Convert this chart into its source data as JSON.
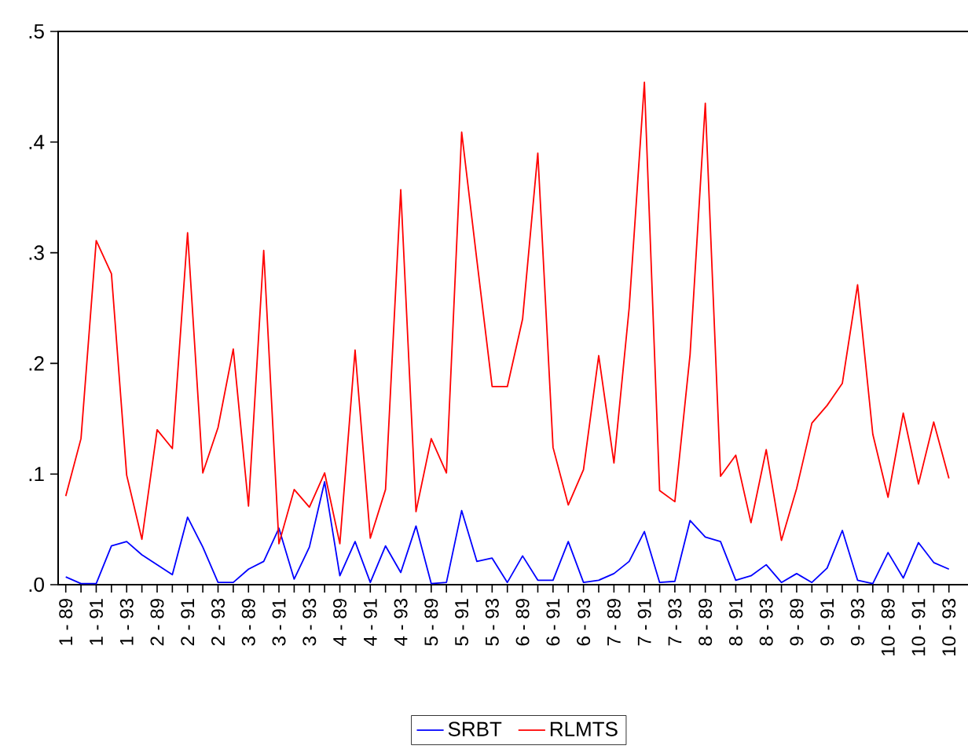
{
  "chart_data": {
    "type": "line",
    "categories": [
      "1 - 89",
      null,
      "1 - 91",
      null,
      "1 - 93",
      null,
      "2 - 89",
      null,
      "2 - 91",
      null,
      "2 - 93",
      null,
      "3 - 89",
      null,
      "3 - 91",
      null,
      "3 - 93",
      null,
      "4 - 89",
      null,
      "4 - 91",
      null,
      "4 - 93",
      null,
      "5 - 89",
      null,
      "5 - 91",
      null,
      "5 - 93",
      null,
      "6 - 89",
      null,
      "6 - 91",
      null,
      "6 - 93",
      null,
      "7 - 89",
      null,
      "7 - 91",
      null,
      "7 - 93",
      null,
      "8 - 89",
      null,
      "8 - 91",
      null,
      "8 - 93",
      null,
      "9 - 89",
      null,
      "9 - 91",
      null,
      "9 - 93",
      null,
      "10 - 89",
      null,
      "10 - 91",
      null,
      "10 - 93"
    ],
    "series": [
      {
        "name": "SRBT",
        "color": "#0000ff",
        "values": [
          0.007,
          0.001,
          0.001,
          0.035,
          0.039,
          0.027,
          0.018,
          0.009,
          0.061,
          0.034,
          0.002,
          0.002,
          0.014,
          0.021,
          0.051,
          0.005,
          0.034,
          0.093,
          0.008,
          0.039,
          0.002,
          0.035,
          0.011,
          0.053,
          0.001,
          0.002,
          0.067,
          0.021,
          0.024,
          0.002,
          0.026,
          0.004,
          0.004,
          0.039,
          0.002,
          0.004,
          0.01,
          0.021,
          0.048,
          0.002,
          0.003,
          0.058,
          0.043,
          0.039,
          0.004,
          0.008,
          0.018,
          0.002,
          0.01,
          0.002,
          0.015,
          0.049,
          0.004,
          0.001,
          0.029,
          0.006,
          0.038,
          0.02,
          0.014
        ]
      },
      {
        "name": "RLMTS",
        "color": "#ff0000",
        "values": [
          0.08,
          0.132,
          0.311,
          0.281,
          0.099,
          0.041,
          0.14,
          0.123,
          0.318,
          0.101,
          0.142,
          0.213,
          0.071,
          0.302,
          0.037,
          0.086,
          0.07,
          0.101,
          0.037,
          0.212,
          0.042,
          0.086,
          0.357,
          0.066,
          0.132,
          0.101,
          0.409,
          0.293,
          0.179,
          0.179,
          0.24,
          0.39,
          0.124,
          0.072,
          0.104,
          0.207,
          0.11,
          0.25,
          0.454,
          0.085,
          0.075,
          0.208,
          0.435,
          0.098,
          0.117,
          0.056,
          0.122,
          0.04,
          0.087,
          0.146,
          0.162,
          0.182,
          0.271,
          0.136,
          0.079,
          0.155,
          0.091,
          0.147,
          0.096
        ]
      }
    ],
    "ylim": [
      0,
      0.5
    ],
    "yticks": [
      {
        "value": 0,
        "label": ".0"
      },
      {
        "value": 0.1,
        "label": ".1"
      },
      {
        "value": 0.2,
        "label": ".2"
      },
      {
        "value": 0.3,
        "label": ".3"
      },
      {
        "value": 0.4,
        "label": ".4"
      },
      {
        "value": 0.5,
        "label": ".5"
      }
    ],
    "grid": false,
    "legend": "bottom",
    "line_style": "solid"
  }
}
